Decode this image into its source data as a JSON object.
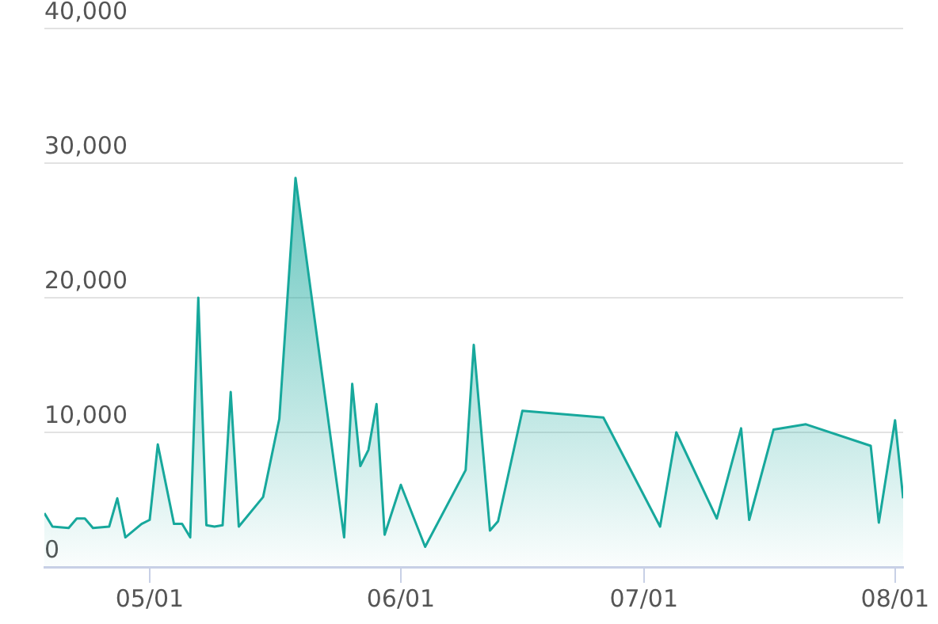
{
  "chart_data": {
    "type": "area",
    "x": [
      "--04-18",
      "--04-19",
      "--04-21",
      "--04-22",
      "--04-23",
      "--04-24",
      "--04-26",
      "--04-27",
      "--04-28",
      "--04-30",
      "--05-01",
      "--05-02",
      "--05-04",
      "--05-05",
      "--05-06",
      "--05-07",
      "--05-08",
      "--05-09",
      "--05-10",
      "--05-11",
      "--05-12",
      "--05-15",
      "--05-17",
      "--05-19",
      "--05-25",
      "--05-26",
      "--05-27",
      "--05-28",
      "--05-29",
      "--05-30",
      "--06-01",
      "--06-04",
      "--06-09",
      "--06-10",
      "--06-12",
      "--06-13",
      "--06-16",
      "--06-26",
      "--07-03",
      "--07-05",
      "--07-10",
      "--07-13",
      "--07-14",
      "--07-17",
      "--07-21",
      "--07-29",
      "--07-30",
      "--08-01",
      "--08-02"
    ],
    "series": [
      {
        "color": "#17a89c",
        "values": [
          4000,
          3000,
          2900,
          3600,
          3600,
          2900,
          3000,
          5100,
          2200,
          3200,
          3500,
          9100,
          3200,
          3200,
          2200,
          20000,
          3100,
          3000,
          3100,
          13000,
          3000,
          5200,
          11000,
          28900,
          2200,
          13600,
          7500,
          8700,
          12100,
          2400,
          6100,
          1500,
          7200,
          16500,
          2700,
          3400,
          11600,
          11100,
          3000,
          10000,
          3600,
          10300,
          3500,
          10200,
          10600,
          9000,
          3300,
          10900,
          5100
        ]
      }
    ],
    "xlim": [
      "--04-18",
      "--08-02"
    ],
    "xticks": [
      {
        "value": "--05-01",
        "label": "05/01"
      },
      {
        "value": "--06-01",
        "label": "06/01"
      },
      {
        "value": "--07-01",
        "label": "07/01"
      },
      {
        "value": "--08-01",
        "label": "08/01"
      }
    ],
    "ylim": [
      0,
      40000
    ],
    "yticks": [
      {
        "value": 0,
        "label": "0"
      },
      {
        "value": 10000,
        "label": "10,000"
      },
      {
        "value": 20000,
        "label": "20,000"
      },
      {
        "value": 30000,
        "label": "30,000"
      },
      {
        "value": 40000,
        "label": "40,000"
      }
    ],
    "grid": "y",
    "legend": false,
    "marker": "none",
    "line_style": "solid"
  }
}
